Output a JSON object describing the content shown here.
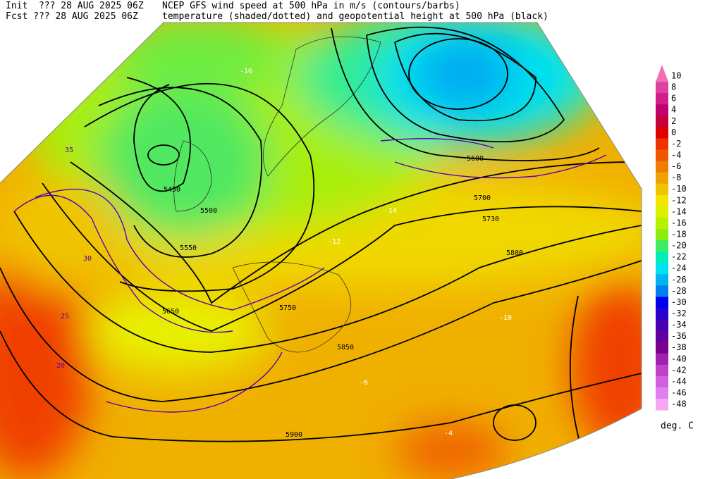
{
  "header": {
    "init": "Init  ??? 28 AUG 2025 06Z",
    "fcst": "Fcst ??? 28 AUG 2025 06Z",
    "title1": "NCEP GFS wind speed at 500 hPa in m/s (contours/barbs)",
    "title2": "temperature (shaded/dotted) and geopotential height at 500 hPa (black)"
  },
  "colorbar": {
    "unit": "deg. C",
    "levels": [
      10,
      8,
      6,
      4,
      2,
      0,
      -2,
      -4,
      -6,
      -8,
      -10,
      -12,
      -14,
      -16,
      -18,
      -20,
      -22,
      -24,
      -26,
      -28,
      -30,
      -32,
      -34,
      -36,
      -38,
      -40,
      -42,
      -44,
      -46,
      -48
    ],
    "colors": [
      "#f070b0",
      "#e040a0",
      "#d02088",
      "#c00070",
      "#c80038",
      "#e00000",
      "#f03000",
      "#f05800",
      "#f07c00",
      "#f0a000",
      "#f0c400",
      "#f0e400",
      "#dcf000",
      "#b8f000",
      "#8ced10",
      "#40ec60",
      "#00eeb8",
      "#00e0f0",
      "#00b4f0",
      "#0080f0",
      "#0000f0",
      "#2a00d0",
      "#4800b0",
      "#6000a0",
      "#7c0090",
      "#a020b0",
      "#c040c8",
      "#d060e0",
      "#e080f0",
      "#f4a8f4"
    ]
  },
  "map": {
    "height_labels": [
      "5450",
      "5500",
      "5550",
      "5600",
      "5650",
      "5700",
      "5730",
      "5750",
      "5800",
      "5850",
      "5900"
    ],
    "wind_labels": [
      "20",
      "25",
      "30",
      "35"
    ],
    "temp_labels": [
      "-16",
      "-14",
      "-12",
      "-10",
      "-6",
      "-4"
    ]
  }
}
